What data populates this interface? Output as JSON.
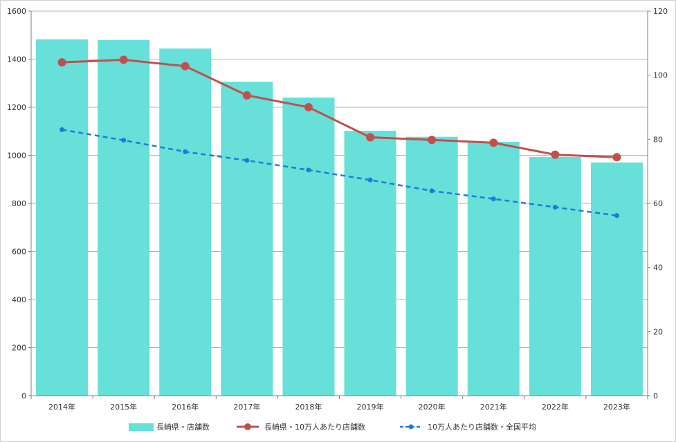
{
  "chart_data": {
    "type": "bar",
    "categories": [
      "2014年",
      "2015年",
      "2016年",
      "2017年",
      "2018年",
      "2019年",
      "2020年",
      "2021年",
      "2022年",
      "2023年"
    ],
    "series": [
      {
        "name": "長崎県・店舗数",
        "kind": "bar",
        "axis": "left",
        "color": "#66E0D8",
        "values": [
          1482,
          1480,
          1444,
          1306,
          1240,
          1102,
          1077,
          1056,
          993,
          970
        ]
      },
      {
        "name": "長崎県・10万人あたり店舗数",
        "kind": "line",
        "axis": "right",
        "color": "#C0504D",
        "dash": false,
        "marker": "circle",
        "values": [
          104.0,
          104.8,
          102.8,
          93.7,
          90.0,
          80.6,
          79.8,
          78.9,
          75.2,
          74.4
        ]
      },
      {
        "name": "10万人あたり店舗数・全国平均",
        "kind": "line",
        "axis": "right",
        "color": "#1F7CD6",
        "dash": true,
        "marker": "dot",
        "values": [
          83.0,
          79.7,
          76.1,
          73.4,
          70.4,
          67.3,
          63.9,
          61.4,
          58.8,
          56.2
        ]
      }
    ],
    "y_left": {
      "min": 0,
      "max": 1600,
      "step": 200,
      "ticks": [
        "0",
        "200",
        "400",
        "600",
        "800",
        "1000",
        "1200",
        "1400",
        "1600"
      ]
    },
    "y_right": {
      "min": 0,
      "max": 120,
      "step": 20,
      "ticks": [
        "0",
        "20",
        "40",
        "60",
        "80",
        "100",
        "120"
      ]
    },
    "grid": true,
    "legend": "bottom"
  }
}
